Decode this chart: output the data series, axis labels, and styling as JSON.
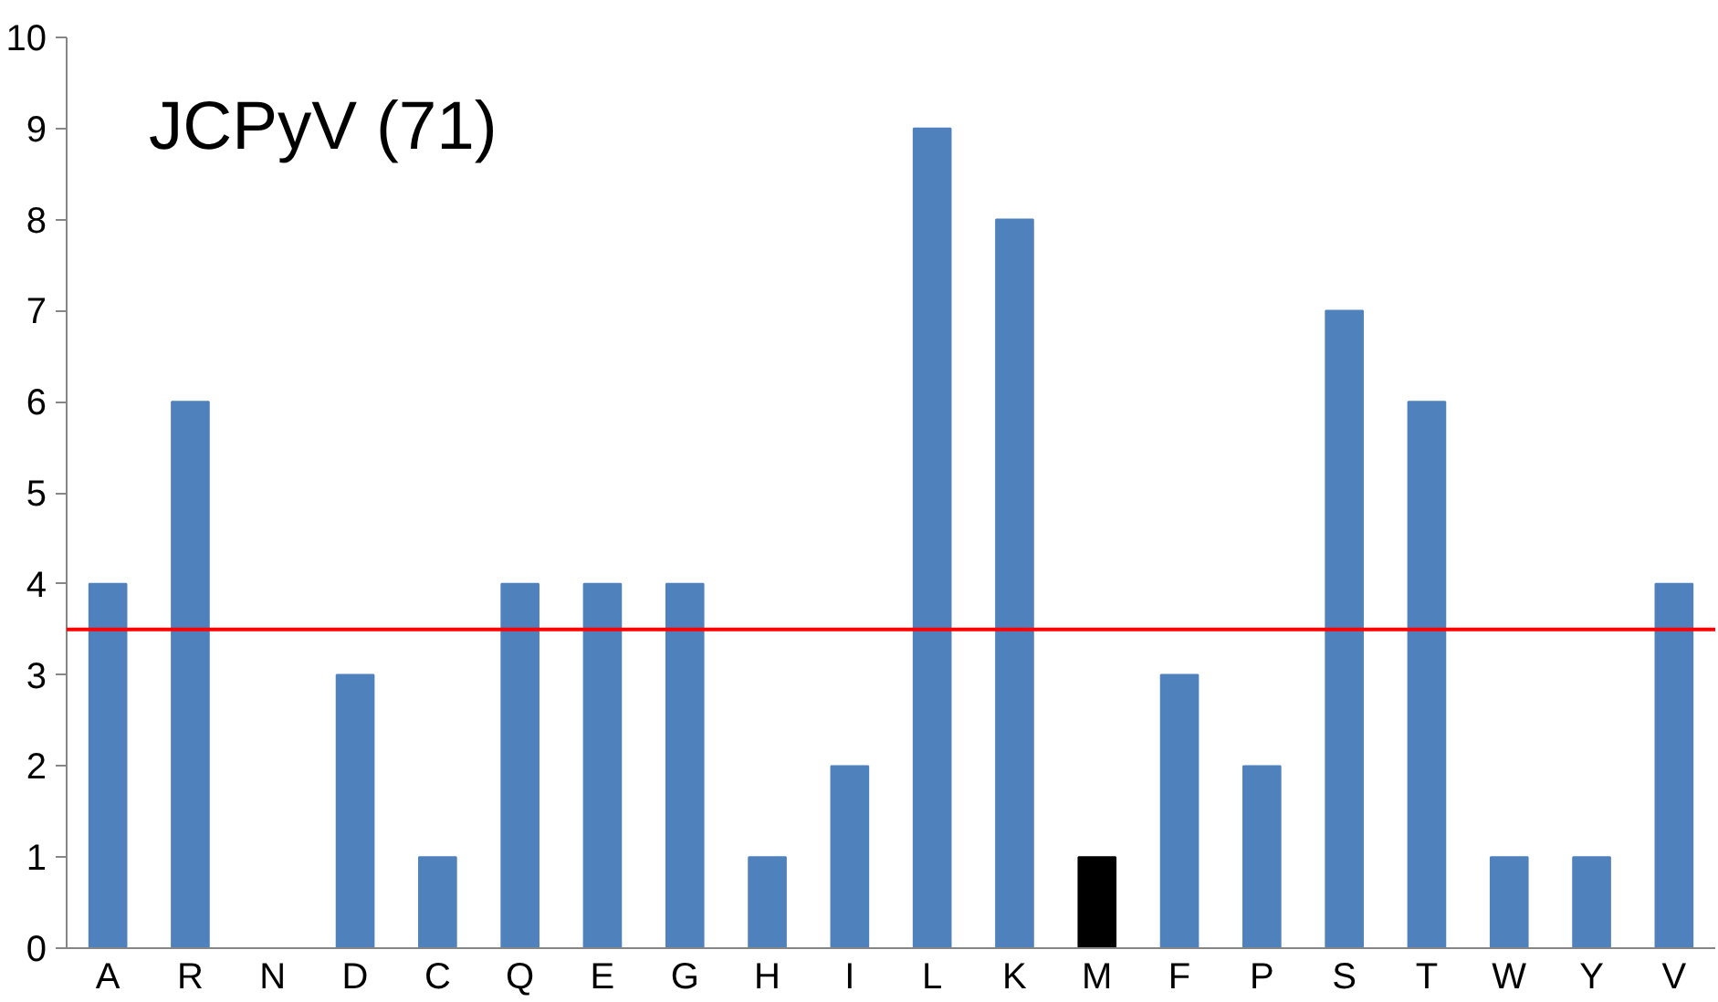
{
  "chart_data": {
    "type": "bar",
    "title": "JCPyV (71)",
    "categories": [
      "A",
      "R",
      "N",
      "D",
      "C",
      "Q",
      "E",
      "G",
      "H",
      "I",
      "L",
      "K",
      "M",
      "F",
      "P",
      "S",
      "T",
      "W",
      "Y",
      "V"
    ],
    "values": [
      4,
      6,
      0,
      3,
      1,
      4,
      4,
      4,
      1,
      2,
      9,
      8,
      1,
      3,
      2,
      7,
      6,
      1,
      1,
      4
    ],
    "colors": [
      "#4f81bd",
      "#4f81bd",
      "#4f81bd",
      "#4f81bd",
      "#4f81bd",
      "#4f81bd",
      "#4f81bd",
      "#4f81bd",
      "#4f81bd",
      "#4f81bd",
      "#4f81bd",
      "#4f81bd",
      "#000000",
      "#4f81bd",
      "#4f81bd",
      "#4f81bd",
      "#4f81bd",
      "#4f81bd",
      "#4f81bd",
      "#4f81bd"
    ],
    "ylim": [
      0,
      10
    ],
    "yticks": [
      0,
      1,
      2,
      3,
      4,
      5,
      6,
      7,
      8,
      9,
      10
    ],
    "ref_lines": [
      {
        "axis": "y",
        "value": 3.5,
        "color": "#ff0000"
      }
    ],
    "grid": false
  }
}
